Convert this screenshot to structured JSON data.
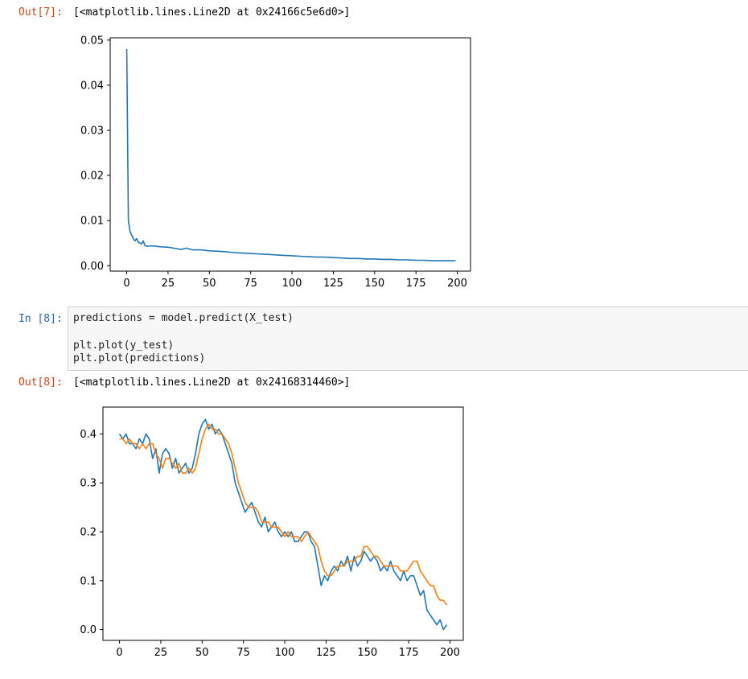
{
  "cells": {
    "out7": {
      "prompt": "Out[7]:",
      "text": "[<matplotlib.lines.Line2D at 0x24166c5e6d0>]"
    },
    "in8": {
      "prompt": "In [8]:",
      "code": [
        "predictions = model.predict(X_test)",
        "",
        "plt.plot(y_test)",
        "plt.plot(predictions)"
      ]
    },
    "out8": {
      "prompt": "Out[8]:",
      "text": "[<matplotlib.lines.Line2D at 0x24168314460>]"
    }
  },
  "chart_data": [
    {
      "type": "line",
      "xlim": [
        -10,
        208
      ],
      "ylim": [
        -0.0012,
        0.0505
      ],
      "x_ticks": [
        0,
        25,
        50,
        75,
        100,
        125,
        150,
        175,
        200
      ],
      "x_tick_labels": [
        "0",
        "25",
        "50",
        "75",
        "100",
        "125",
        "150",
        "175",
        "200"
      ],
      "y_ticks": [
        0.0,
        0.01,
        0.02,
        0.03,
        0.04,
        0.05
      ],
      "y_tick_labels": [
        "0.00",
        "0.01",
        "0.02",
        "0.03",
        "0.04",
        "0.05"
      ],
      "grid": false,
      "series": [
        {
          "color": "#1f77b4",
          "x": [
            0,
            1,
            2,
            3,
            4,
            5,
            6,
            7,
            8,
            9,
            10,
            11,
            12,
            15,
            20,
            25,
            30,
            33,
            36,
            40,
            45,
            50,
            55,
            60,
            65,
            70,
            75,
            80,
            85,
            90,
            95,
            100,
            105,
            110,
            115,
            120,
            125,
            130,
            135,
            140,
            145,
            150,
            155,
            160,
            165,
            170,
            175,
            180,
            185,
            190,
            195,
            199
          ],
          "y": [
            0.048,
            0.01,
            0.0075,
            0.0068,
            0.006,
            0.0055,
            0.006,
            0.0052,
            0.005,
            0.0048,
            0.0055,
            0.0045,
            0.0043,
            0.0044,
            0.0042,
            0.0041,
            0.0038,
            0.0036,
            0.0039,
            0.0035,
            0.0035,
            0.0033,
            0.0032,
            0.0031,
            0.0029,
            0.0028,
            0.0027,
            0.0026,
            0.0025,
            0.0024,
            0.0023,
            0.0022,
            0.0021,
            0.002,
            0.0019,
            0.0019,
            0.0018,
            0.0017,
            0.0016,
            0.0016,
            0.0015,
            0.0015,
            0.0014,
            0.0014,
            0.0013,
            0.0013,
            0.0012,
            0.0012,
            0.0011,
            0.0011,
            0.0011,
            0.0011
          ]
        }
      ]
    },
    {
      "type": "line",
      "xlim": [
        -10,
        208
      ],
      "ylim": [
        -0.022,
        0.455
      ],
      "x_ticks": [
        0,
        25,
        50,
        75,
        100,
        125,
        150,
        175,
        200
      ],
      "x_tick_labels": [
        "0",
        "25",
        "50",
        "75",
        "100",
        "125",
        "150",
        "175",
        "200"
      ],
      "y_ticks": [
        0.0,
        0.1,
        0.2,
        0.3,
        0.4
      ],
      "y_tick_labels": [
        "0.0",
        "0.1",
        "0.2",
        "0.3",
        "0.4"
      ],
      "grid": false,
      "series": [
        {
          "color": "#1f77b4",
          "x": [
            0,
            2,
            4,
            6,
            8,
            10,
            12,
            14,
            16,
            18,
            20,
            22,
            24,
            26,
            28,
            30,
            32,
            34,
            36,
            38,
            40,
            42,
            44,
            46,
            48,
            50,
            52,
            54,
            56,
            58,
            60,
            62,
            64,
            66,
            68,
            70,
            72,
            74,
            76,
            78,
            80,
            82,
            84,
            86,
            88,
            90,
            92,
            94,
            96,
            98,
            100,
            102,
            104,
            106,
            108,
            110,
            112,
            114,
            116,
            118,
            120,
            122,
            124,
            126,
            128,
            130,
            132,
            134,
            136,
            138,
            140,
            142,
            144,
            146,
            148,
            150,
            152,
            154,
            156,
            158,
            160,
            162,
            164,
            166,
            168,
            170,
            172,
            174,
            176,
            178,
            180,
            182,
            184,
            186,
            188,
            190,
            192,
            194,
            196,
            198
          ],
          "y": [
            0.4,
            0.39,
            0.4,
            0.38,
            0.38,
            0.37,
            0.39,
            0.38,
            0.4,
            0.39,
            0.35,
            0.37,
            0.32,
            0.36,
            0.37,
            0.36,
            0.33,
            0.35,
            0.32,
            0.33,
            0.34,
            0.32,
            0.33,
            0.36,
            0.4,
            0.42,
            0.43,
            0.41,
            0.42,
            0.4,
            0.41,
            0.4,
            0.38,
            0.36,
            0.34,
            0.3,
            0.28,
            0.26,
            0.24,
            0.25,
            0.26,
            0.24,
            0.22,
            0.21,
            0.23,
            0.2,
            0.21,
            0.22,
            0.2,
            0.19,
            0.2,
            0.19,
            0.2,
            0.18,
            0.18,
            0.19,
            0.2,
            0.2,
            0.18,
            0.17,
            0.13,
            0.09,
            0.11,
            0.1,
            0.12,
            0.13,
            0.12,
            0.14,
            0.13,
            0.15,
            0.12,
            0.15,
            0.13,
            0.14,
            0.16,
            0.15,
            0.14,
            0.15,
            0.14,
            0.12,
            0.13,
            0.12,
            0.14,
            0.12,
            0.11,
            0.1,
            0.12,
            0.1,
            0.11,
            0.11,
            0.09,
            0.07,
            0.08,
            0.04,
            0.03,
            0.02,
            0.01,
            0.02,
            0.0,
            0.01
          ]
        },
        {
          "color": "#ff7f0e",
          "x": [
            0,
            2,
            4,
            6,
            8,
            10,
            12,
            14,
            16,
            18,
            20,
            22,
            24,
            26,
            28,
            30,
            32,
            34,
            36,
            38,
            40,
            42,
            44,
            46,
            48,
            50,
            52,
            54,
            56,
            58,
            60,
            62,
            64,
            66,
            68,
            70,
            72,
            74,
            76,
            78,
            80,
            82,
            84,
            86,
            88,
            90,
            92,
            94,
            96,
            98,
            100,
            102,
            104,
            106,
            108,
            110,
            112,
            114,
            116,
            118,
            120,
            122,
            124,
            126,
            128,
            130,
            132,
            134,
            136,
            138,
            140,
            142,
            144,
            146,
            148,
            150,
            152,
            154,
            156,
            158,
            160,
            162,
            164,
            166,
            168,
            170,
            172,
            174,
            176,
            178,
            180,
            182,
            184,
            186,
            188,
            190,
            192,
            194,
            196,
            198
          ],
          "y": [
            0.39,
            0.39,
            0.38,
            0.39,
            0.38,
            0.38,
            0.37,
            0.38,
            0.37,
            0.38,
            0.38,
            0.36,
            0.35,
            0.33,
            0.35,
            0.35,
            0.34,
            0.33,
            0.34,
            0.32,
            0.32,
            0.33,
            0.32,
            0.33,
            0.36,
            0.39,
            0.41,
            0.42,
            0.41,
            0.41,
            0.4,
            0.4,
            0.39,
            0.38,
            0.36,
            0.33,
            0.3,
            0.28,
            0.26,
            0.25,
            0.25,
            0.25,
            0.24,
            0.22,
            0.22,
            0.22,
            0.21,
            0.21,
            0.21,
            0.2,
            0.19,
            0.2,
            0.19,
            0.19,
            0.19,
            0.18,
            0.19,
            0.2,
            0.19,
            0.18,
            0.17,
            0.14,
            0.12,
            0.11,
            0.11,
            0.12,
            0.13,
            0.13,
            0.13,
            0.14,
            0.14,
            0.14,
            0.15,
            0.15,
            0.17,
            0.17,
            0.16,
            0.15,
            0.15,
            0.14,
            0.13,
            0.13,
            0.13,
            0.13,
            0.13,
            0.12,
            0.12,
            0.12,
            0.13,
            0.14,
            0.14,
            0.12,
            0.11,
            0.1,
            0.09,
            0.09,
            0.07,
            0.06,
            0.06,
            0.05
          ]
        }
      ]
    }
  ]
}
